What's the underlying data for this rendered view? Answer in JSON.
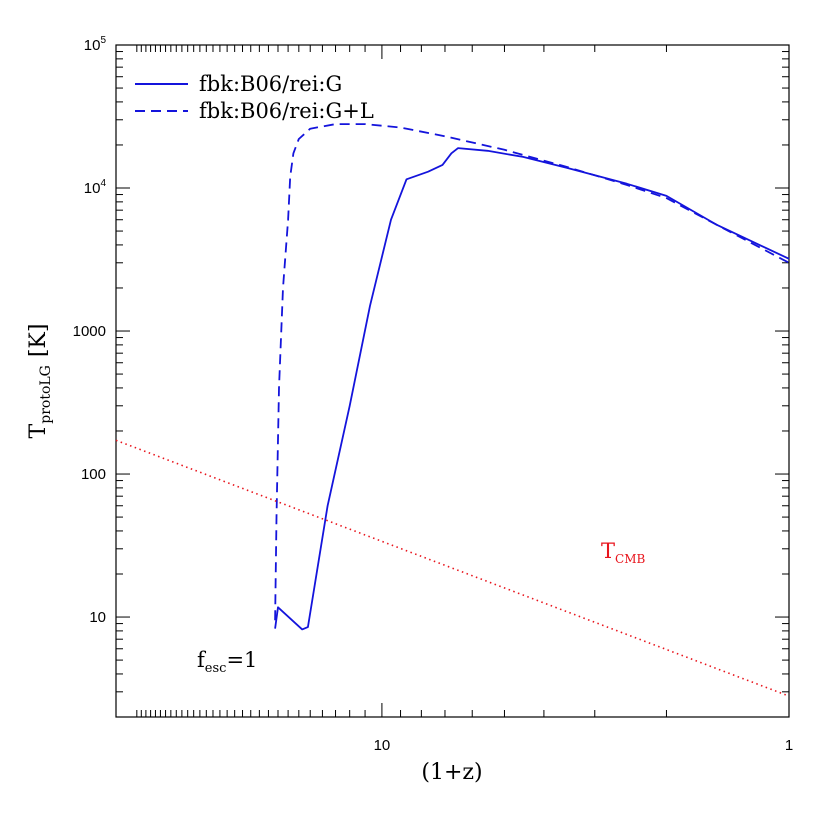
{
  "chart_data": {
    "type": "line",
    "xlabel": "(1+z)",
    "ylabel": {
      "main": "T",
      "sub": "protoLG",
      "unit": "[K]"
    },
    "x_scale": "log",
    "x_reversed": true,
    "xlim": [
      45,
      1
    ],
    "y_scale": "log",
    "ylim": [
      2,
      100000
    ],
    "x_ticks": [
      {
        "value": 10,
        "label": "10"
      },
      {
        "value": 1,
        "label": "1"
      }
    ],
    "y_ticks": [
      {
        "value": 10,
        "label": "10",
        "sup": ""
      },
      {
        "value": 100,
        "label": "100",
        "sup": ""
      },
      {
        "value": 1000,
        "label": "1000",
        "sup": ""
      },
      {
        "value": 10000,
        "label": "10",
        "sup": "4"
      },
      {
        "value": 100000,
        "label": "10",
        "sup": "5"
      }
    ],
    "series": [
      {
        "name": "fbk:B06/rei:G",
        "style": "solid",
        "color": "#1414dc",
        "points": [
          [
            18.3,
            8.3
          ],
          [
            18.0,
            11.7
          ],
          [
            15.7,
            8.2
          ],
          [
            15.2,
            8.5
          ],
          [
            13.6,
            60
          ],
          [
            12.0,
            300
          ],
          [
            10.7,
            1500
          ],
          [
            9.5,
            6000
          ],
          [
            8.7,
            11500
          ],
          [
            7.7,
            13000
          ],
          [
            7.1,
            14500
          ],
          [
            6.75,
            17500
          ],
          [
            6.5,
            19000
          ],
          [
            5.5,
            18200
          ],
          [
            4.5,
            16500
          ],
          [
            3.5,
            13800
          ],
          [
            2.5,
            10700
          ],
          [
            2.0,
            8800
          ],
          [
            1.5,
            5500
          ],
          [
            1.0,
            3200
          ]
        ]
      },
      {
        "name": "fbk:B06/rei:G+L",
        "style": "dashed",
        "color": "#1414dc",
        "points": [
          [
            18.3,
            9.5
          ],
          [
            18.15,
            50
          ],
          [
            17.9,
            400
          ],
          [
            17.5,
            2000
          ],
          [
            17.0,
            6000
          ],
          [
            16.8,
            12000
          ],
          [
            16.5,
            17500
          ],
          [
            16.0,
            22000
          ],
          [
            15.0,
            26000
          ],
          [
            13.0,
            28000
          ],
          [
            11.0,
            28000
          ],
          [
            9.0,
            26500
          ],
          [
            7.0,
            23000
          ],
          [
            5.0,
            18500
          ],
          [
            3.5,
            14000
          ],
          [
            2.5,
            10500
          ],
          [
            2.0,
            8500
          ],
          [
            1.5,
            5500
          ],
          [
            1.0,
            3000
          ]
        ]
      },
      {
        "name": "T_CMB",
        "style": "dotted",
        "color": "#e8141c",
        "points": [
          [
            45,
            172
          ],
          [
            1,
            2.8
          ]
        ]
      }
    ],
    "legend": {
      "placement": "top-left"
    },
    "annotations": [
      {
        "base": "T",
        "sub": "CMB",
        "color": "#e8141c",
        "x": 3.2,
        "y": 17
      },
      {
        "base": "f",
        "sub": "esc",
        "tail": "=1",
        "color": "#000000",
        "x": 30,
        "y": 4.2
      }
    ],
    "grid": false
  }
}
